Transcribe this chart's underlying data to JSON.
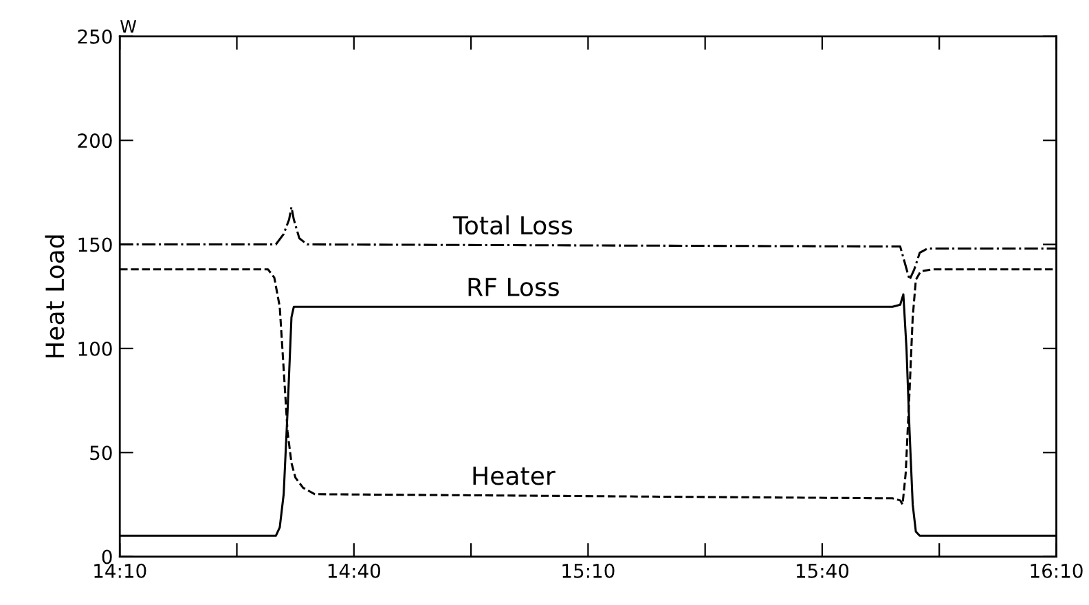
{
  "chart_data": {
    "type": "line",
    "ylabel": "Heat Load",
    "annotations": [
      "W"
    ],
    "xlim": [
      14.1667,
      16.1667
    ],
    "xticks": [
      {
        "value": 14.1667,
        "label": "14:10"
      },
      {
        "value": 14.4167,
        "label": null
      },
      {
        "value": 14.6667,
        "label": "14:40"
      },
      {
        "value": 14.9167,
        "label": null
      },
      {
        "value": 15.1667,
        "label": "15:10"
      },
      {
        "value": 15.4167,
        "label": null
      },
      {
        "value": 15.6667,
        "label": "15:40"
      },
      {
        "value": 15.9167,
        "label": null
      },
      {
        "value": 16.1667,
        "label": "16:10"
      }
    ],
    "ylim": [
      0,
      250
    ],
    "yticks": [
      0,
      50,
      100,
      150,
      200,
      250
    ],
    "grid": false,
    "legend": false,
    "marker": "none",
    "series": [
      {
        "name": "Total Loss",
        "color": "#000000",
        "line_style": "dashdot",
        "x": [
          14.1667,
          14.5,
          14.5167,
          14.5283,
          14.5333,
          14.5383,
          14.55,
          14.5667,
          15.8167,
          15.8333,
          15.8433,
          15.8533,
          15.8633,
          15.875,
          15.8917,
          16.1667
        ],
        "values": [
          150,
          150,
          155,
          162,
          168,
          162,
          153,
          150,
          149,
          149,
          141,
          133,
          138,
          146,
          148,
          148
        ]
      },
      {
        "name": "RF Loss",
        "color": "#000000",
        "line_style": "solid",
        "x": [
          14.1667,
          14.5,
          14.5083,
          14.5167,
          14.525,
          14.5333,
          14.5383,
          15.8167,
          15.8333,
          15.84,
          15.8467,
          15.8533,
          15.86,
          15.8667,
          15.875,
          16.1667
        ],
        "values": [
          10,
          10,
          14,
          30,
          70,
          115,
          120,
          120,
          121,
          126,
          100,
          60,
          25,
          12,
          10,
          10
        ]
      },
      {
        "name": "Heater",
        "color": "#000000",
        "line_style": "dashed",
        "x": [
          14.1667,
          14.4833,
          14.4967,
          14.5083,
          14.5167,
          14.525,
          14.5333,
          14.5417,
          14.5583,
          14.5833,
          15.8167,
          15.8333,
          15.8383,
          15.845,
          15.8533,
          15.86,
          15.8667,
          15.8767,
          15.9,
          16.1667
        ],
        "values": [
          138,
          138,
          134,
          120,
          90,
          60,
          45,
          38,
          33,
          30,
          28,
          27,
          25,
          40,
          80,
          115,
          133,
          137,
          138,
          138
        ]
      }
    ]
  }
}
